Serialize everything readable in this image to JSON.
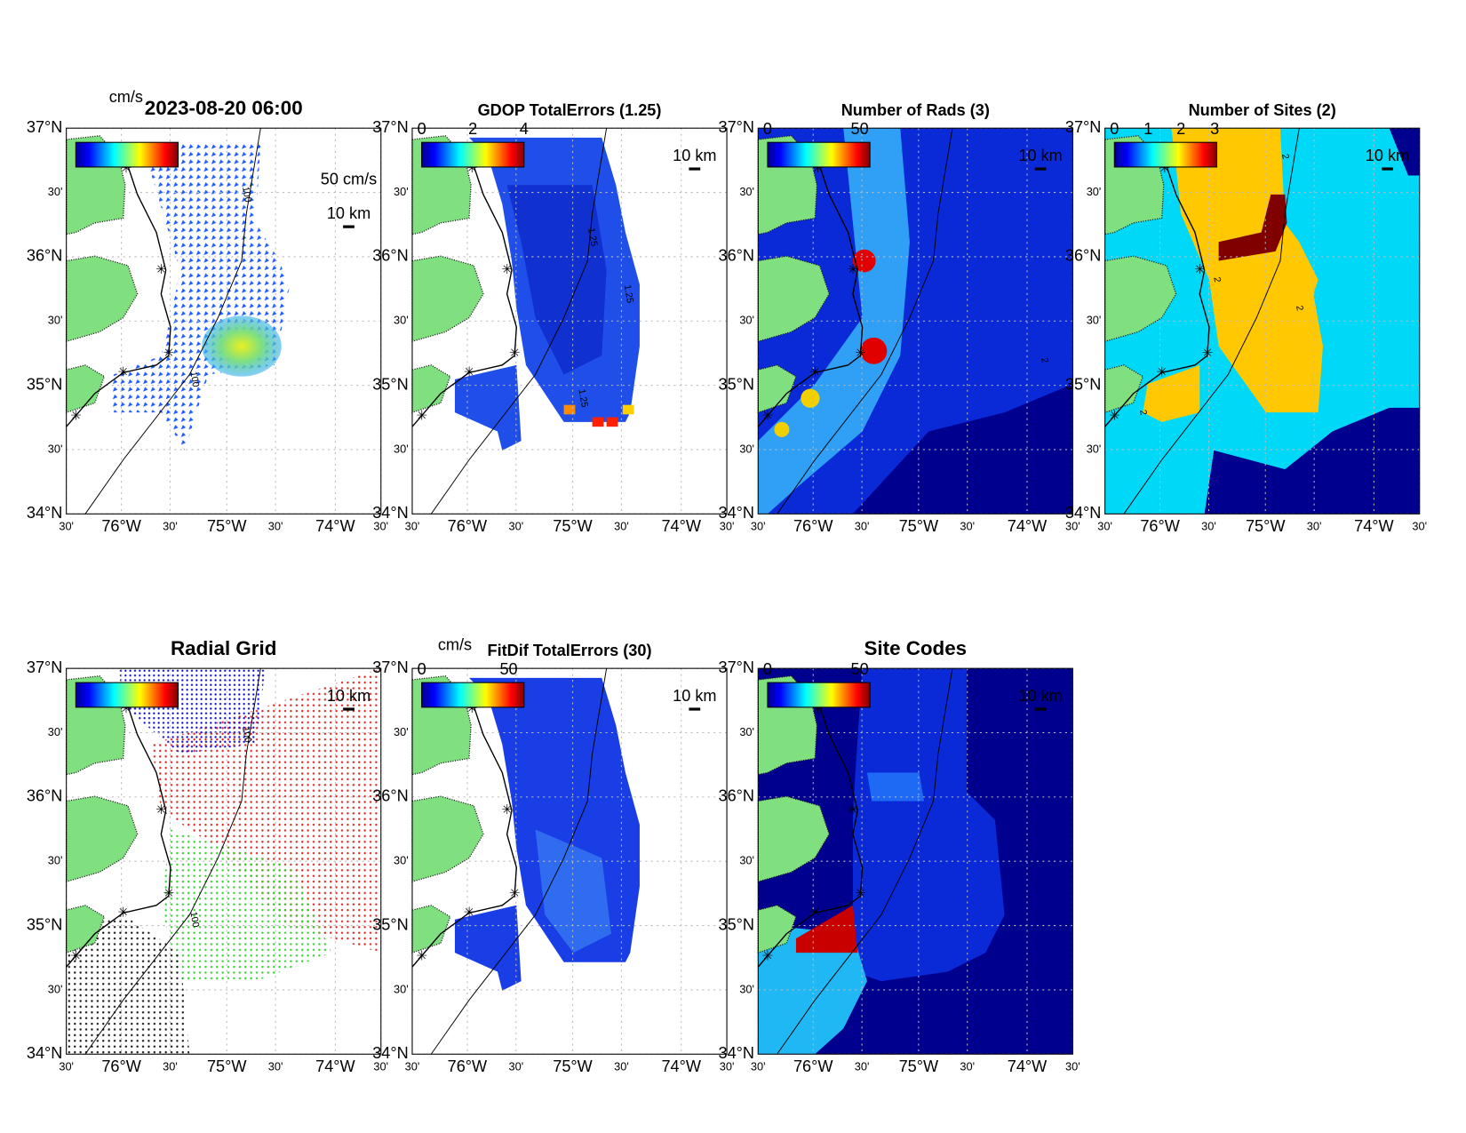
{
  "lat_labels": [
    "37°N",
    "30'",
    "36°N",
    "30'",
    "35°N",
    "30'",
    "34°N"
  ],
  "lon_labels": [
    "30'",
    "76°W",
    "30'",
    "75°W",
    "30'",
    "74°W",
    "30'"
  ],
  "panels": [
    {
      "title": "2023-08-20 06:00",
      "colorbar_label": "cm/s",
      "scale_label": "10 km",
      "vector_label": "50 cm/s",
      "contour_labels": [
        "100",
        "100"
      ]
    },
    {
      "title": "GDOP TotalErrors (1.25)",
      "colorbar_ticks": [
        0,
        2,
        4
      ],
      "scale_label": "10 km",
      "contour_labels": [
        "1.25",
        "1.25",
        "1.25"
      ]
    },
    {
      "title": "Number of Rads (3)",
      "colorbar_ticks": [
        0,
        50
      ],
      "scale_label": "10 km",
      "contour_labels": [
        "2"
      ]
    },
    {
      "title": "Number of Sites (2)",
      "colorbar_ticks": [
        0,
        1,
        2,
        3
      ],
      "scale_label": "10 km",
      "contour_labels": [
        "2",
        "2",
        "2",
        "2"
      ]
    },
    {
      "title": "Radial Grid",
      "scale_label": "10 km",
      "contour_labels": [
        "100",
        "100"
      ]
    },
    {
      "title": "FitDif TotalErrors (30)",
      "colorbar_label": "cm/s",
      "colorbar_ticks": [
        0,
        50
      ],
      "scale_label": "10 km"
    },
    {
      "title": "Site Codes",
      "colorbar_ticks": [
        0,
        50
      ],
      "scale_label": "10 km"
    }
  ]
}
